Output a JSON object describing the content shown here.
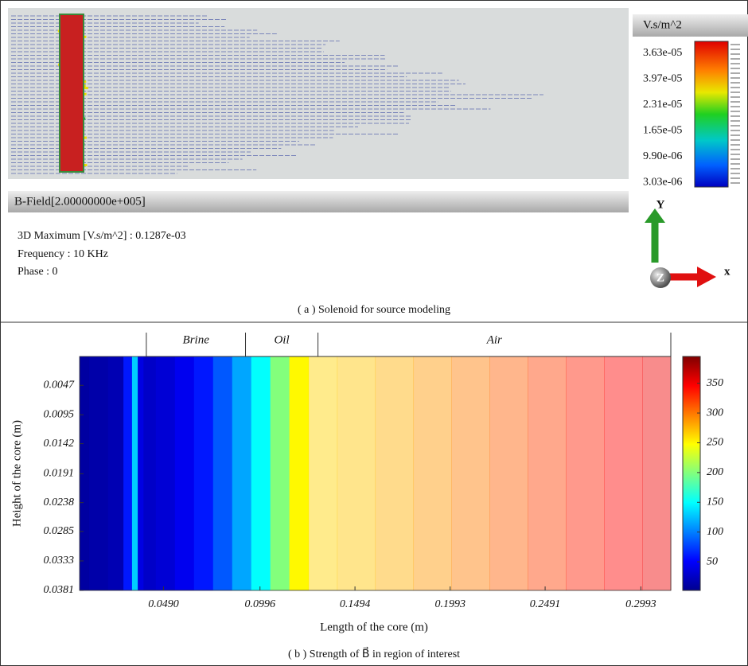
{
  "panel_a": {
    "legend_title": "V.s/m^2",
    "legend_values": [
      "3.63e-05",
      "3.97e-05",
      "2.31e-05",
      "1.65e-05",
      "9.90e-06",
      "3.03e-06"
    ],
    "header": "B-Field[2.00000000e+005]",
    "info": [
      "3D Maximum [V.s/m^2] : 0.1287e-03",
      "Frequency : 10 KHz",
      "Phase : 0"
    ],
    "axes": {
      "y": "Y",
      "z": "Z",
      "x": "x"
    },
    "caption": "( a ) Solenoid for source modeling"
  },
  "chart_data": {
    "type": "heatmap",
    "x_label": "Length of the core (m)",
    "y_label": "Height of the core (m)",
    "caption": "( b ) Strength of B⃗ in region of interest",
    "xlim": [
      0.005,
      0.315
    ],
    "xticks": [
      {
        "value": 0.049,
        "label": "0.0490"
      },
      0.0996,
      0.1494,
      0.1993,
      0.2491,
      0.2993
    ],
    "ylim": [
      0,
      0.0381
    ],
    "y_inverted": true,
    "yticks": [
      0.0047,
      0.0095,
      0.0142,
      0.0191,
      0.0238,
      0.0285,
      0.0333,
      0.0381
    ],
    "x": [
      0.005,
      0.015,
      0.025,
      0.031,
      0.034,
      0.037,
      0.04,
      0.05,
      0.06,
      0.07,
      0.08,
      0.09,
      0.1,
      0.11,
      0.12,
      0.13,
      0.15,
      0.17,
      0.19,
      0.21,
      0.23,
      0.25,
      0.27,
      0.29,
      0.31
    ],
    "values": [
      15,
      18,
      22,
      60,
      130,
      40,
      30,
      35,
      45,
      60,
      85,
      115,
      150,
      200,
      250,
      265,
      270,
      278,
      288,
      298,
      310,
      322,
      335,
      345,
      352
    ],
    "regions": [
      {
        "name": "Brine",
        "x0": 0.04,
        "x1": 0.092
      },
      {
        "name": "Oil",
        "x0": 0.092,
        "x1": 0.13
      },
      {
        "name": "Air",
        "x0": 0.13,
        "x1": 0.315,
        "opacity": 0.45
      }
    ],
    "colormap": "jet",
    "clim": [
      2,
      395
    ],
    "cticks": [
      50,
      100,
      150,
      200,
      250,
      300,
      350
    ]
  }
}
